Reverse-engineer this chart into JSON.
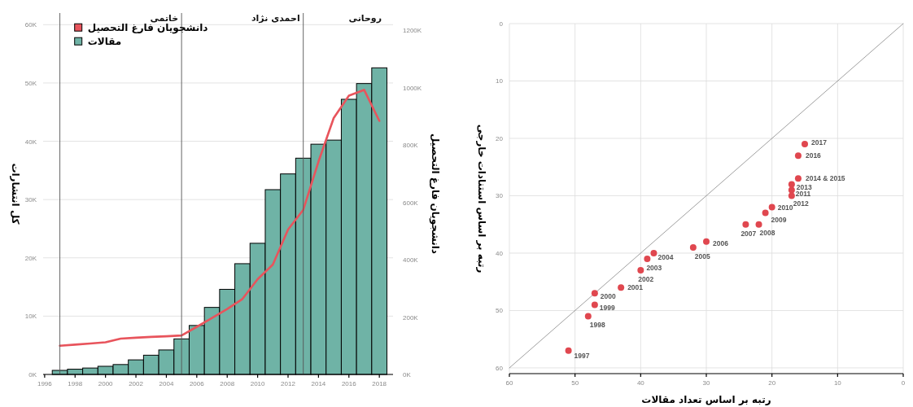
{
  "chart_data": [
    {
      "type": "bar",
      "x": [
        1997,
        1998,
        1999,
        2000,
        2001,
        2002,
        2003,
        2004,
        2005,
        2006,
        2007,
        2008,
        2009,
        2010,
        2011,
        2012,
        2013,
        2014,
        2015,
        2016,
        2017,
        2018
      ],
      "series": [
        {
          "name": "دانشجویان فارغ التحصیل",
          "type": "line",
          "axis": "y2",
          "color": "#e8545c",
          "values": [
            100000,
            104000,
            108000,
            112000,
            125000,
            128000,
            131000,
            133000,
            136000,
            166000,
            197000,
            228000,
            263000,
            332000,
            383000,
            505000,
            574000,
            742000,
            894000,
            972000,
            992000,
            884000
          ]
        },
        {
          "name": "مقالات",
          "type": "bar",
          "color": "#6fb3a6",
          "values": [
            700,
            900,
            1100,
            1400,
            1700,
            2500,
            3300,
            4200,
            6100,
            8400,
            11500,
            14600,
            19000,
            22500,
            31700,
            34400,
            37100,
            39500,
            40200,
            47200,
            49900,
            52600
          ]
        }
      ],
      "xlim": [
        1995.9,
        2018.9
      ],
      "xticks": [
        1996,
        1998,
        2000,
        2002,
        2004,
        2006,
        2008,
        2010,
        2012,
        2014,
        2016,
        2018
      ],
      "ylim": [
        0,
        62000
      ],
      "yticks": [
        {
          "value": 0,
          "label": "0K"
        },
        {
          "value": 10000,
          "label": "10K"
        },
        {
          "value": 20000,
          "label": "20K"
        },
        {
          "value": 30000,
          "label": "30K"
        },
        {
          "value": 40000,
          "label": "40K"
        },
        {
          "value": 50000,
          "label": "50K"
        },
        {
          "value": 60000,
          "label": "60K"
        }
      ],
      "y2lim": [
        0,
        1260000
      ],
      "y2ticks": [
        {
          "value": 0,
          "label": "0K"
        },
        {
          "value": 200000,
          "label": "200K"
        },
        {
          "value": 400000,
          "label": "400K"
        },
        {
          "value": 600000,
          "label": "600K"
        },
        {
          "value": 800000,
          "label": "800K"
        },
        {
          "value": 1000000,
          "label": "1000K"
        },
        {
          "value": 1200000,
          "label": "1200K"
        }
      ],
      "ylabel": "کل انتشارات",
      "y2label": "دانشجویان فارغ التحصیل",
      "ref_lines": [
        {
          "axis": "x",
          "value": 1997,
          "color": "#555555"
        },
        {
          "axis": "x",
          "value": 2005,
          "label": "خاتمی",
          "color": "#555555"
        },
        {
          "axis": "x",
          "value": 2013,
          "label": "احمدی نژاد",
          "color": "#555555"
        }
      ],
      "annotations": [
        "روحانی"
      ],
      "grid": "y",
      "legend": "top left"
    },
    {
      "type": "scatter",
      "series": [
        {
          "type": "line",
          "color": "#777777",
          "x": [
            60,
            0
          ],
          "values": [
            60,
            0
          ]
        },
        {
          "type": "scatter",
          "color": "#e0474f",
          "x": [
            51,
            48,
            47,
            47,
            43,
            40,
            39,
            38,
            32,
            30,
            24,
            22,
            21,
            20,
            17,
            17,
            17,
            16,
            16,
            15
          ],
          "values": [
            57,
            51,
            49,
            47,
            46,
            43,
            41,
            40,
            39,
            38,
            35,
            35,
            33,
            32,
            29,
            30,
            28,
            27,
            23,
            21
          ]
        }
      ],
      "annotations": [
        {
          "text": "1997",
          "x": 51,
          "y": 57
        },
        {
          "text": "1998",
          "x": 48,
          "y": 51
        },
        {
          "text": "1999",
          "x": 47,
          "y": 49
        },
        {
          "text": "2000",
          "x": 47,
          "y": 47
        },
        {
          "text": "2001",
          "x": 43,
          "y": 46
        },
        {
          "text": "2002",
          "x": 40,
          "y": 43
        },
        {
          "text": "2003",
          "x": 39,
          "y": 41
        },
        {
          "text": "2004",
          "x": 38,
          "y": 40
        },
        {
          "text": "2005",
          "x": 32,
          "y": 39
        },
        {
          "text": "2006",
          "x": 30,
          "y": 38
        },
        {
          "text": "2007",
          "x": 24,
          "y": 35
        },
        {
          "text": "2008",
          "x": 22,
          "y": 35
        },
        {
          "text": "2009",
          "x": 21,
          "y": 33
        },
        {
          "text": "2010",
          "x": 20,
          "y": 32
        },
        {
          "text": "2011",
          "x": 17,
          "y": 29
        },
        {
          "text": "2012",
          "x": 17,
          "y": 30
        },
        {
          "text": "2013",
          "x": 17,
          "y": 28
        },
        {
          "text": "2014 & 2015",
          "x": 16,
          "y": 27
        },
        {
          "text": "2016",
          "x": 16,
          "y": 23
        },
        {
          "text": "2017",
          "x": 15,
          "y": 21
        }
      ],
      "xlim": [
        60,
        0
      ],
      "ylim": [
        61,
        0
      ],
      "xticks": [
        60,
        50,
        40,
        30,
        20,
        10,
        0
      ],
      "yticks": [
        0,
        10,
        20,
        30,
        40,
        50,
        60
      ],
      "xlabel": "رتبه بر اساس تعداد مقالات",
      "ylabel": "رتبه بر اساس استنادات خارجی",
      "grid": true
    }
  ]
}
